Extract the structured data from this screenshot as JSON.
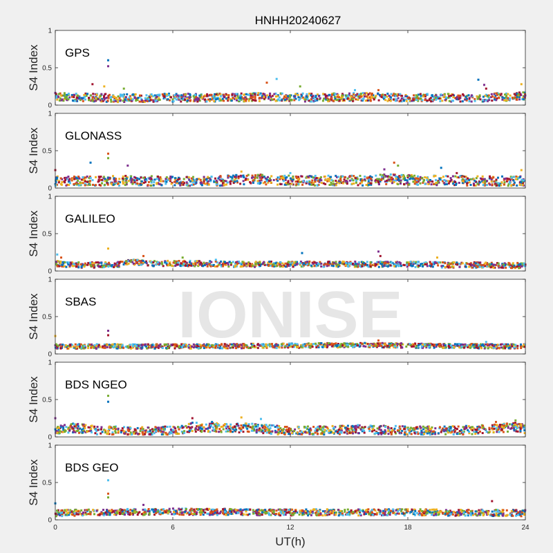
{
  "figure_title": "HNHH20240627",
  "watermark": "IONISE",
  "colors": [
    "#0072BD",
    "#D95319",
    "#EDB120",
    "#7E2F8E",
    "#77AC30",
    "#4DBEEE",
    "#A2142F"
  ],
  "chart_data": [
    {
      "type": "scatter",
      "label": "GPS",
      "ylabel": "S4 Index",
      "xlim": [
        0,
        24
      ],
      "ylim": [
        0,
        1
      ],
      "yticks": [
        "0",
        "0.5",
        "1"
      ],
      "x_tick_marks": [
        0,
        6,
        12,
        18,
        24
      ],
      "baseline_profile": [
        [
          0,
          0.11
        ],
        [
          2,
          0.1
        ],
        [
          4,
          0.09
        ],
        [
          6,
          0.1
        ],
        [
          9,
          0.1
        ],
        [
          11,
          0.11
        ],
        [
          13,
          0.1
        ],
        [
          16,
          0.11
        ],
        [
          18,
          0.1
        ],
        [
          20,
          0.1
        ],
        [
          22,
          0.1
        ],
        [
          24,
          0.12
        ]
      ],
      "spread": 0.09,
      "spikes": [
        [
          2.7,
          0.6
        ],
        [
          2.7,
          0.52
        ],
        [
          1.9,
          0.28
        ],
        [
          2.5,
          0.25
        ],
        [
          11.3,
          0.35
        ],
        [
          10.8,
          0.3
        ],
        [
          12.5,
          0.25
        ],
        [
          21.6,
          0.34
        ],
        [
          21.9,
          0.27
        ],
        [
          22,
          0.22
        ],
        [
          23.8,
          0.28
        ],
        [
          15.3,
          0.2
        ],
        [
          16.5,
          0.2
        ],
        [
          3.5,
          0.22
        ]
      ],
      "grid": false
    },
    {
      "type": "scatter",
      "label": "GLONASS",
      "ylabel": "S4 Index",
      "xlim": [
        0,
        24
      ],
      "ylim": [
        0,
        1
      ],
      "yticks": [
        "0",
        "0.5",
        "1"
      ],
      "x_tick_marks": [
        0,
        6,
        12,
        18,
        24
      ],
      "baseline_profile": [
        [
          0,
          0.09
        ],
        [
          2,
          0.09
        ],
        [
          4,
          0.1
        ],
        [
          6,
          0.09
        ],
        [
          8,
          0.09
        ],
        [
          10,
          0.12
        ],
        [
          12,
          0.1
        ],
        [
          14,
          0.1
        ],
        [
          16,
          0.1
        ],
        [
          17,
          0.12
        ],
        [
          18,
          0.11
        ],
        [
          20,
          0.1
        ],
        [
          22,
          0.09
        ],
        [
          24,
          0.09
        ]
      ],
      "spread": 0.11,
      "spikes": [
        [
          2.7,
          0.46
        ],
        [
          2.7,
          0.4
        ],
        [
          1.8,
          0.34
        ],
        [
          3.7,
          0.3
        ],
        [
          0,
          0.24
        ],
        [
          9.5,
          0.22
        ],
        [
          12,
          0.2
        ],
        [
          17.3,
          0.34
        ],
        [
          17.5,
          0.3
        ],
        [
          19.7,
          0.27
        ],
        [
          16.8,
          0.25
        ],
        [
          20.5,
          0.2
        ],
        [
          23.8,
          0.24
        ]
      ],
      "grid": false
    },
    {
      "type": "scatter",
      "label": "GALILEO",
      "ylabel": "S4 Index",
      "xlim": [
        0,
        24
      ],
      "ylim": [
        0,
        1
      ],
      "yticks": [
        "0",
        "0.5",
        "1"
      ],
      "x_tick_marks": [
        0,
        6,
        12,
        18,
        24
      ],
      "baseline_profile": [
        [
          0,
          0.1
        ],
        [
          1,
          0.08
        ],
        [
          3,
          0.08
        ],
        [
          4,
          0.12
        ],
        [
          5,
          0.1
        ],
        [
          7,
          0.1
        ],
        [
          9,
          0.09
        ],
        [
          12,
          0.09
        ],
        [
          14,
          0.09
        ],
        [
          16,
          0.09
        ],
        [
          18,
          0.09
        ],
        [
          20,
          0.08
        ],
        [
          22,
          0.08
        ],
        [
          24,
          0.07
        ]
      ],
      "spread": 0.06,
      "spikes": [
        [
          2.7,
          0.3
        ],
        [
          0.1,
          0.22
        ],
        [
          4.5,
          0.2
        ],
        [
          6.5,
          0.18
        ],
        [
          12.6,
          0.24
        ],
        [
          16.5,
          0.26
        ],
        [
          16.6,
          0.2
        ],
        [
          19.5,
          0.18
        ],
        [
          8.2,
          0.15
        ],
        [
          0.3,
          0.18
        ]
      ],
      "grid": false
    },
    {
      "type": "scatter",
      "label": "SBAS",
      "ylabel": "S4 Index",
      "xlim": [
        0,
        24
      ],
      "ylim": [
        0,
        1
      ],
      "yticks": [
        "0",
        "0.5",
        "1"
      ],
      "x_tick_marks": [
        0,
        6,
        12,
        18,
        24
      ],
      "baseline_profile": [
        [
          0,
          0.1
        ],
        [
          6,
          0.1
        ],
        [
          12,
          0.11
        ],
        [
          16,
          0.12
        ],
        [
          18,
          0.11
        ],
        [
          24,
          0.1
        ]
      ],
      "spread": 0.05,
      "spikes": [
        [
          2.7,
          0.31
        ],
        [
          2.7,
          0.25
        ],
        [
          0,
          0.24
        ],
        [
          22,
          0.16
        ],
        [
          16.5,
          0.18
        ]
      ],
      "grid": false
    },
    {
      "type": "scatter",
      "label": "BDS NGEO",
      "ylabel": "S4 Index",
      "xlim": [
        0,
        24
      ],
      "ylim": [
        0,
        1
      ],
      "yticks": [
        "0",
        "0.5",
        "1"
      ],
      "x_tick_marks": [
        0,
        6,
        12,
        18,
        24
      ],
      "baseline_profile": [
        [
          0,
          0.1
        ],
        [
          1,
          0.12
        ],
        [
          2,
          0.09
        ],
        [
          4,
          0.07
        ],
        [
          6,
          0.08
        ],
        [
          7,
          0.13
        ],
        [
          9,
          0.12
        ],
        [
          10,
          0.12
        ],
        [
          12,
          0.08
        ],
        [
          14,
          0.09
        ],
        [
          16,
          0.1
        ],
        [
          18,
          0.08
        ],
        [
          20,
          0.08
        ],
        [
          22,
          0.1
        ],
        [
          23.5,
          0.13
        ],
        [
          24,
          0.1
        ]
      ],
      "spread": 0.1,
      "spikes": [
        [
          2.7,
          0.55
        ],
        [
          2.7,
          0.47
        ],
        [
          0,
          0.25
        ],
        [
          7,
          0.25
        ],
        [
          9.5,
          0.26
        ],
        [
          10.5,
          0.24
        ],
        [
          22.5,
          0.2
        ],
        [
          23.5,
          0.22
        ],
        [
          8,
          0.2
        ]
      ],
      "grid": false
    },
    {
      "type": "scatter",
      "label": "BDS GEO",
      "ylabel": "S4 Index",
      "xlim": [
        0,
        24
      ],
      "xticks": [
        "0",
        "6",
        "12",
        "18",
        "24"
      ],
      "xlabel": "UT(h)",
      "ylim": [
        0,
        1
      ],
      "yticks": [
        "0",
        "0.5",
        "1"
      ],
      "baseline_profile": [
        [
          0,
          0.09
        ],
        [
          6,
          0.11
        ],
        [
          12,
          0.1
        ],
        [
          18,
          0.1
        ],
        [
          24,
          0.09
        ]
      ],
      "spread": 0.07,
      "spikes": [
        [
          2.7,
          0.53
        ],
        [
          2.7,
          0.35
        ],
        [
          2.7,
          0.3
        ],
        [
          0,
          0.22
        ],
        [
          4.5,
          0.2
        ],
        [
          22.3,
          0.25
        ],
        [
          18,
          0.14
        ]
      ],
      "grid": false
    }
  ]
}
